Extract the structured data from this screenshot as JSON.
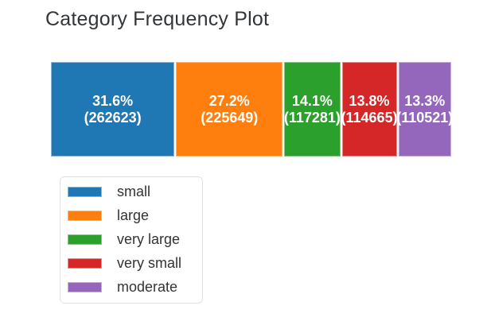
{
  "title": "Category Frequency Plot",
  "chart_data": {
    "type": "bar",
    "variant": "single-stacked-horizontal-bar",
    "title": "Category Frequency Plot",
    "grid": false,
    "axes_visible": false,
    "legend_position": "bottom-left-framed",
    "categories": [
      "small",
      "large",
      "very large",
      "very small",
      "moderate"
    ],
    "series": [
      {
        "name": "count",
        "values": [
          262623,
          225649,
          117281,
          114665,
          110521
        ]
      },
      {
        "name": "percent",
        "values": [
          31.6,
          27.2,
          14.1,
          13.8,
          13.3
        ]
      }
    ],
    "segments": [
      {
        "category": "small",
        "count": 262623,
        "percent": 31.6,
        "percent_label": "31.6%",
        "count_label": "(262623)",
        "color": "#1f77b4",
        "border_color": "#8db4d4"
      },
      {
        "category": "large",
        "count": 225649,
        "percent": 27.2,
        "percent_label": "27.2%",
        "count_label": "(225649)",
        "color": "#ff7f0e",
        "border_color": "#ffb469"
      },
      {
        "category": "very large",
        "count": 117281,
        "percent": 14.1,
        "percent_label": "14.1%",
        "count_label": "(117281)",
        "color": "#2ca02c",
        "border_color": "#85c685"
      },
      {
        "category": "very small",
        "count": 114665,
        "percent": 13.8,
        "percent_label": "13.8%",
        "count_label": "(114665)",
        "color": "#d62728",
        "border_color": "#e78a8a"
      },
      {
        "category": "moderate",
        "count": 110521,
        "percent": 13.3,
        "percent_label": "13.3%",
        "count_label": "(110521)",
        "color": "#9467bd",
        "border_color": "#c3abdc"
      }
    ],
    "legend": {
      "items": [
        {
          "label": "small",
          "color": "#1f77b4",
          "border_color": "#8db4d4"
        },
        {
          "label": "large",
          "color": "#ff7f0e",
          "border_color": "#ffb469"
        },
        {
          "label": "very large",
          "color": "#2ca02c",
          "border_color": "#85c685"
        },
        {
          "label": "very small",
          "color": "#d62728",
          "border_color": "#e78a8a"
        },
        {
          "label": "moderate",
          "color": "#9467bd",
          "border_color": "#c3abdc"
        }
      ]
    },
    "label_text_color": "#ffffff"
  }
}
